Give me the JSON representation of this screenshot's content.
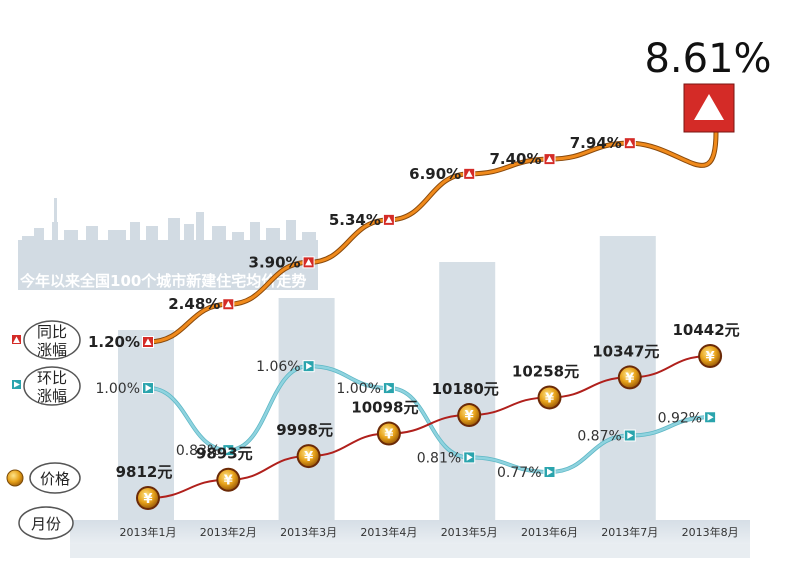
{
  "chart_data": {
    "type": "line",
    "subtitle": "今年以来全国100个城市新建住宅均价走势",
    "categories": [
      "2013年1月",
      "2013年2月",
      "2013年3月",
      "2013年4月",
      "2013年5月",
      "2013年6月",
      "2013年7月",
      "2013年8月"
    ],
    "legend": {
      "yoy": "同比涨幅",
      "mom": "环比涨幅",
      "price": "价格",
      "month": "月份"
    },
    "series": [
      {
        "key": "yoy",
        "name": "同比涨幅",
        "values": [
          1.2,
          2.48,
          3.9,
          5.34,
          6.9,
          7.4,
          7.94,
          8.61
        ],
        "labels": [
          "1.20%",
          "2.48%",
          "3.90%",
          "5.34%",
          "6.90%",
          "7.40%",
          "7.94%",
          "8.61%"
        ]
      },
      {
        "key": "mom",
        "name": "环比涨幅",
        "values": [
          1.0,
          0.83,
          1.06,
          1.0,
          0.81,
          0.77,
          0.87,
          0.92
        ],
        "labels": [
          "1.00%",
          "0.83%",
          "1.06%",
          "1.00%",
          "0.81%",
          "0.77%",
          "0.87%",
          "0.92%"
        ]
      },
      {
        "key": "price",
        "name": "价格",
        "values": [
          9812,
          9893,
          9998,
          10098,
          10180,
          10258,
          10347,
          10442
        ],
        "labels": [
          "9812元",
          "9893元",
          "9998元",
          "10098元",
          "10180元",
          "10258元",
          "10347元",
          "10442元"
        ]
      }
    ],
    "colors": {
      "yoy_line": "#f08a1c",
      "yoy_marker": "#d42b27",
      "mom_line": "#8fd3df",
      "mom_marker": "#2aa4ad",
      "price_line": "#b0201c",
      "price_coin": "#e7a21a",
      "column": "#cfd9e2",
      "skyline": "#d2dbe3",
      "band": "#cdd7df"
    },
    "icons": {
      "yoy": "red-up-triangle-icon",
      "mom": "teal-right-triangle-icon",
      "price": "yuan-coin-icon"
    }
  }
}
